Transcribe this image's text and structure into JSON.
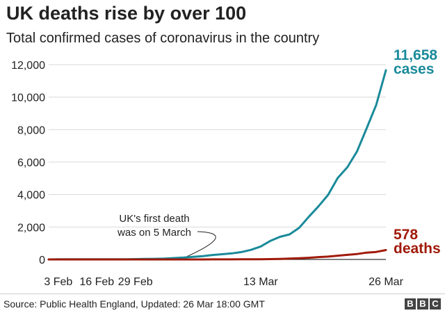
{
  "chart_data": {
    "type": "line",
    "title": "UK deaths rise by over 100",
    "subtitle": "Total confirmed cases of coronavirus in the country",
    "xlabel": "",
    "ylabel": "",
    "x": [
      "31 Jan",
      "3 Feb",
      "6 Feb",
      "9 Feb",
      "12 Feb",
      "16 Feb",
      "19 Feb",
      "22 Feb",
      "25 Feb",
      "29 Feb",
      "1 Mar",
      "2 Mar",
      "3 Mar",
      "4 Mar",
      "5 Mar",
      "6 Mar",
      "7 Mar",
      "8 Mar",
      "9 Mar",
      "10 Mar",
      "11 Mar",
      "12 Mar",
      "13 Mar",
      "14 Mar",
      "15 Mar",
      "16 Mar",
      "17 Mar",
      "18 Mar",
      "19 Mar",
      "20 Mar",
      "21 Mar",
      "22 Mar",
      "23 Mar",
      "24 Mar",
      "25 Mar",
      "26 Mar"
    ],
    "x_ticks": [
      "3 Feb",
      "16 Feb",
      "29 Feb",
      "13 Mar",
      "26 Mar"
    ],
    "y_ticks": [
      "0",
      "2,000",
      "4,000",
      "6,000",
      "8,000",
      "10,000",
      "12,000"
    ],
    "ylim": [
      0,
      12000
    ],
    "grid": true,
    "series": [
      {
        "name": "cases",
        "color": "#1a8a9a",
        "values": [
          2,
          8,
          9,
          9,
          9,
          9,
          9,
          13,
          13,
          23,
          35,
          40,
          51,
          85,
          115,
          163,
          206,
          273,
          321,
          373,
          456,
          590,
          798,
          1140,
          1391,
          1543,
          1950,
          2626,
          3269,
          3983,
          5018,
          5683,
          6650,
          8077,
          9529,
          11658
        ]
      },
      {
        "name": "deaths",
        "color": "#a01a0a",
        "values": [
          0,
          0,
          0,
          0,
          0,
          0,
          0,
          0,
          0,
          0,
          0,
          0,
          0,
          0,
          1,
          2,
          2,
          3,
          4,
          6,
          8,
          10,
          11,
          21,
          35,
          55,
          71,
          104,
          144,
          177,
          233,
          281,
          335,
          422,
          463,
          578
        ]
      }
    ],
    "end_labels": [
      {
        "value": "11,658",
        "label": "cases"
      },
      {
        "value": "578",
        "label": "deaths"
      }
    ],
    "annotation": {
      "lines": [
        "UK's first death",
        "was on 5 March"
      ],
      "target": "5 Mar"
    }
  },
  "footer": {
    "source": "Source: Public Health England, Updated: 26 Mar 18:00 GMT",
    "logo": [
      "B",
      "B",
      "C"
    ]
  }
}
